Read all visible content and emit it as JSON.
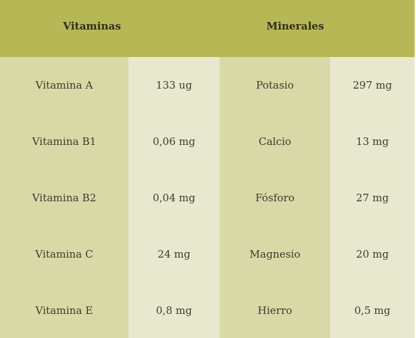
{
  "table": {
    "header": [
      "Vitaminas",
      "Minerales"
    ],
    "rows": [
      [
        "Vitamina A",
        "133 ug",
        "Potasio",
        "297 mg"
      ],
      [
        "Vitamina B1",
        "0,06 mg",
        "Calcio",
        "13 mg"
      ],
      [
        "Vitamina B2",
        "0,04 mg",
        "Fósforo",
        "27 mg"
      ],
      [
        "Vitamina C",
        "24 mg",
        "Magnesio",
        "20 mg"
      ],
      [
        "Vitamina E",
        "0,8 mg",
        "Hierro",
        "0,5 mg"
      ]
    ]
  }
}
